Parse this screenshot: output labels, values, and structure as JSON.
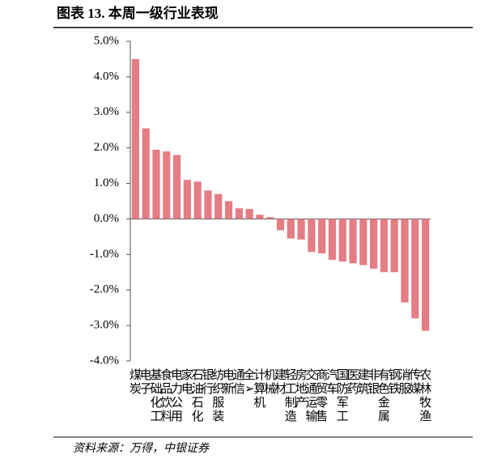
{
  "chart_data": {
    "type": "bar",
    "title": "图表 13. 本周一级行业表现",
    "source": "资料来源：万得，中银证券",
    "categories": [
      "煤炭",
      "电子",
      "基础化工",
      "食品饮料",
      "电力公用",
      "家电",
      "石油石化",
      "银行",
      "纺织服装",
      "电新",
      "通信",
      "全➢",
      "计算机",
      "机械",
      "建材",
      "轻工制造",
      "房地产",
      "交通运输",
      "商贸零售",
      "汽车",
      "国防军工",
      "医药",
      "建筑",
      "非银",
      "有色金属",
      "钢铁",
      "消服",
      "传媒",
      "农林牧渔"
    ],
    "values": [
      4.5,
      2.55,
      1.95,
      1.9,
      1.8,
      1.1,
      1.05,
      0.8,
      0.7,
      0.5,
      0.3,
      0.28,
      0.12,
      0.05,
      -0.32,
      -0.55,
      -0.58,
      -0.93,
      -0.97,
      -1.15,
      -1.2,
      -1.25,
      -1.3,
      -1.4,
      -1.5,
      -1.5,
      -2.35,
      -2.8,
      -3.15
    ],
    "color": "#e47d84",
    "ylim": [
      -4,
      5
    ],
    "yticks": [
      {
        "value": -4,
        "label": "-4.0%"
      },
      {
        "value": -3,
        "label": "-3.0%"
      },
      {
        "value": -2,
        "label": "-2.0%"
      },
      {
        "value": -1,
        "label": "-1.0%"
      },
      {
        "value": 0,
        "label": "0.0%"
      },
      {
        "value": 1,
        "label": "1.0%"
      },
      {
        "value": 2,
        "label": "2.0%"
      },
      {
        "value": 3,
        "label": "3.0%"
      },
      {
        "value": 4,
        "label": "4.0%"
      },
      {
        "value": 5,
        "label": "5.0%"
      }
    ]
  }
}
